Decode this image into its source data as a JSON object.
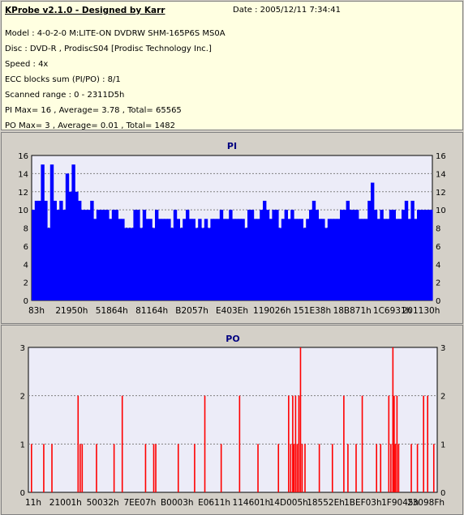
{
  "info": {
    "title": "KProbe v2.1.0 - Designed by Karr",
    "date": "Date : 2005/12/11 7:34:41",
    "lines": [
      "Model : 4-0-2-0 M:LITE-ON DVDRW SHM-165P6S MS0A",
      "Disc : DVD-R , ProdiscS04   [Prodisc Technology Inc.]",
      "Speed : 4x",
      "ECC blocks sum (PI/PO) : 8/1",
      "Scanned range : 0 - 2311D5h",
      "PI Max= 16 , Average= 3.78 , Total= 65565",
      "PO Max= 3 , Average= 0.01 , Total= 1482"
    ]
  },
  "colors": {
    "pi": "#0000ff",
    "po": "#ff0000",
    "plot_bg": "#ececf8",
    "grid": "#808080"
  },
  "chart_data": [
    {
      "type": "bar",
      "title": "PI",
      "ylim": [
        0,
        16
      ],
      "yticks": [
        0,
        2,
        4,
        6,
        8,
        10,
        12,
        14,
        16
      ],
      "x_tick_labels": [
        "83h",
        "21950h",
        "51864h",
        "81164h",
        "B2057h",
        "E403Eh",
        "119026h",
        "151E38h",
        "18B871h",
        "1C6931h",
        "201130h"
      ],
      "grid": true,
      "dense_bars": true,
      "values": [
        10,
        11,
        11,
        15,
        11,
        8,
        15,
        11,
        10,
        11,
        10,
        14,
        12,
        15,
        12,
        11,
        10,
        10,
        10,
        11,
        9,
        10,
        10,
        10,
        10,
        9,
        10,
        10,
        9,
        9,
        8,
        8,
        8,
        10,
        10,
        8,
        10,
        9,
        9,
        8,
        10,
        9,
        9,
        9,
        9,
        8,
        10,
        9,
        8,
        9,
        10,
        9,
        9,
        8,
        9,
        8,
        9,
        8,
        9,
        9,
        9,
        10,
        9,
        9,
        10,
        9,
        9,
        9,
        9,
        8,
        10,
        10,
        9,
        9,
        10,
        11,
        10,
        9,
        10,
        10,
        8,
        9,
        10,
        9,
        10,
        9,
        9,
        9,
        8,
        9,
        10,
        11,
        10,
        9,
        9,
        8,
        9,
        9,
        9,
        9,
        10,
        10,
        11,
        10,
        10,
        10,
        9,
        9,
        9,
        11,
        13,
        10,
        9,
        10,
        9,
        9,
        10,
        10,
        9,
        9,
        10,
        11,
        9,
        11,
        9,
        10,
        10,
        10,
        10,
        10
      ],
      "series_name": "PI"
    },
    {
      "type": "bar",
      "title": "PO",
      "ylim": [
        0,
        3
      ],
      "yticks": [
        0,
        1,
        2,
        3
      ],
      "x_tick_labels": [
        "11h",
        "21001h",
        "50032h",
        "7EE07h",
        "B0003h",
        "E0611h",
        "114601h",
        "14D005h",
        "18552Eh",
        "1BEF03h",
        "1F9045h",
        "23098Fh"
      ],
      "grid": true,
      "spikes": [
        {
          "pos": 0.006,
          "value": 1
        },
        {
          "pos": 0.036,
          "value": 1
        },
        {
          "pos": 0.056,
          "value": 1
        },
        {
          "pos": 0.12,
          "value": 2
        },
        {
          "pos": 0.125,
          "value": 1
        },
        {
          "pos": 0.13,
          "value": 1
        },
        {
          "pos": 0.165,
          "value": 1
        },
        {
          "pos": 0.208,
          "value": 1
        },
        {
          "pos": 0.228,
          "value": 2
        },
        {
          "pos": 0.285,
          "value": 1
        },
        {
          "pos": 0.305,
          "value": 1
        },
        {
          "pos": 0.31,
          "value": 1
        },
        {
          "pos": 0.365,
          "value": 1
        },
        {
          "pos": 0.405,
          "value": 1
        },
        {
          "pos": 0.43,
          "value": 2
        },
        {
          "pos": 0.47,
          "value": 1
        },
        {
          "pos": 0.515,
          "value": 2
        },
        {
          "pos": 0.56,
          "value": 1
        },
        {
          "pos": 0.61,
          "value": 1
        },
        {
          "pos": 0.635,
          "value": 2
        },
        {
          "pos": 0.64,
          "value": 1
        },
        {
          "pos": 0.645,
          "value": 2
        },
        {
          "pos": 0.648,
          "value": 1
        },
        {
          "pos": 0.652,
          "value": 2
        },
        {
          "pos": 0.656,
          "value": 1
        },
        {
          "pos": 0.66,
          "value": 2
        },
        {
          "pos": 0.664,
          "value": 3
        },
        {
          "pos": 0.668,
          "value": 1
        },
        {
          "pos": 0.675,
          "value": 1
        },
        {
          "pos": 0.71,
          "value": 1
        },
        {
          "pos": 0.742,
          "value": 1
        },
        {
          "pos": 0.77,
          "value": 2
        },
        {
          "pos": 0.78,
          "value": 1
        },
        {
          "pos": 0.8,
          "value": 1
        },
        {
          "pos": 0.815,
          "value": 2
        },
        {
          "pos": 0.85,
          "value": 1
        },
        {
          "pos": 0.86,
          "value": 1
        },
        {
          "pos": 0.88,
          "value": 2
        },
        {
          "pos": 0.885,
          "value": 1
        },
        {
          "pos": 0.89,
          "value": 3
        },
        {
          "pos": 0.893,
          "value": 2
        },
        {
          "pos": 0.896,
          "value": 1
        },
        {
          "pos": 0.9,
          "value": 2
        },
        {
          "pos": 0.904,
          "value": 1
        },
        {
          "pos": 0.935,
          "value": 1
        },
        {
          "pos": 0.95,
          "value": 1
        },
        {
          "pos": 0.965,
          "value": 2
        },
        {
          "pos": 0.975,
          "value": 2
        },
        {
          "pos": 0.99,
          "value": 1
        }
      ],
      "series_name": "PO"
    }
  ]
}
